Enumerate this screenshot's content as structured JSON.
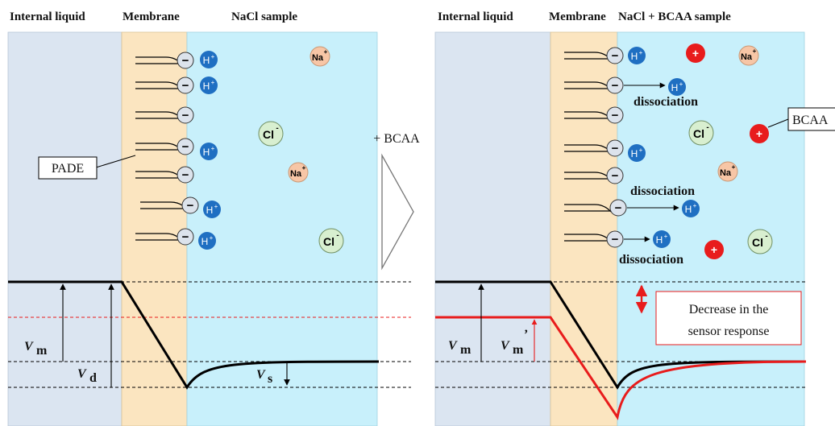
{
  "left_panel": {
    "headers": {
      "internal_liquid": "Internal liquid",
      "membrane": "Membrane",
      "sample": "NaCl sample"
    },
    "pade_label": "PADE",
    "potentials": {
      "vm": "V",
      "vm_sub": "m",
      "vd": "V",
      "vd_sub": "d",
      "vs": "V",
      "vs_sub": "s"
    }
  },
  "arrow_label": "+ BCAA",
  "right_panel": {
    "headers": {
      "internal_liquid": "Internal liquid",
      "membrane": "Membrane",
      "sample": "NaCl + BCAA sample"
    },
    "bcaa_label": "BCAA",
    "dissociation_label": "dissociation",
    "decrease_label_line1": "Decrease in the",
    "decrease_label_line2": "sensor response",
    "potentials": {
      "vm": "V",
      "vm_sub": "m",
      "vm2": "V",
      "vm2_sub": "m",
      "vm2_prime": "’"
    }
  },
  "ions": {
    "proton": "H",
    "proton_sup": "+",
    "sodium": "Na",
    "sodium_sup": "+",
    "chloride": "Cl",
    "chloride_sup": "-",
    "minus": "−",
    "plus": "+"
  },
  "colors": {
    "internal_liquid": "#dbe5f1",
    "membrane": "#fbe5c0",
    "sample": "#c8f0fb",
    "proton": "#1f6fc2",
    "sodium": "#f7c6a6",
    "chloride": "#d8efd0",
    "bcaa": "#e81c1c",
    "negative_site": "#dce3ec",
    "red_line": "#e81c1c"
  }
}
